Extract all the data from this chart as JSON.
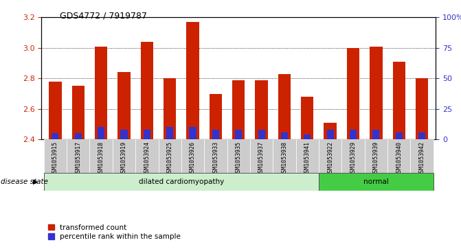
{
  "title": "GDS4772 / 7919787",
  "samples": [
    "GSM1053915",
    "GSM1053917",
    "GSM1053918",
    "GSM1053919",
    "GSM1053924",
    "GSM1053925",
    "GSM1053926",
    "GSM1053933",
    "GSM1053935",
    "GSM1053937",
    "GSM1053938",
    "GSM1053941",
    "GSM1053922",
    "GSM1053929",
    "GSM1053939",
    "GSM1053940",
    "GSM1053942"
  ],
  "transformed_count": [
    2.78,
    2.75,
    3.01,
    2.84,
    3.04,
    2.8,
    3.17,
    2.7,
    2.79,
    2.79,
    2.83,
    2.68,
    2.51,
    3.0,
    3.01,
    2.91,
    2.8
  ],
  "percentile_rank": [
    5,
    5,
    10,
    8,
    8,
    10,
    10,
    8,
    8,
    8,
    6,
    4,
    8,
    8,
    8,
    6,
    6
  ],
  "ymin": 2.4,
  "ymax": 3.2,
  "yticks_left": [
    2.4,
    2.6,
    2.8,
    3.0,
    3.2
  ],
  "right_yticks_pct": [
    0,
    25,
    50,
    75,
    100
  ],
  "right_yticklabels": [
    "0",
    "25",
    "50",
    "75",
    "100%"
  ],
  "bar_color_red": "#cc2200",
  "bar_color_blue": "#3333cc",
  "group1_label": "dilated cardiomyopathy",
  "group2_label": "normal",
  "group1_count": 12,
  "group2_count": 5,
  "disease_state_label": "disease state",
  "legend_red": "transformed count",
  "legend_blue": "percentile rank within the sample",
  "left_tick_color": "#cc2200",
  "right_tick_color": "#3333cc",
  "gridline_vals": [
    2.6,
    2.8,
    3.0
  ],
  "bar_width": 0.55,
  "group1_bg": "#cceecc",
  "group2_bg": "#44cc44",
  "xticklabel_bg": "#cccccc"
}
